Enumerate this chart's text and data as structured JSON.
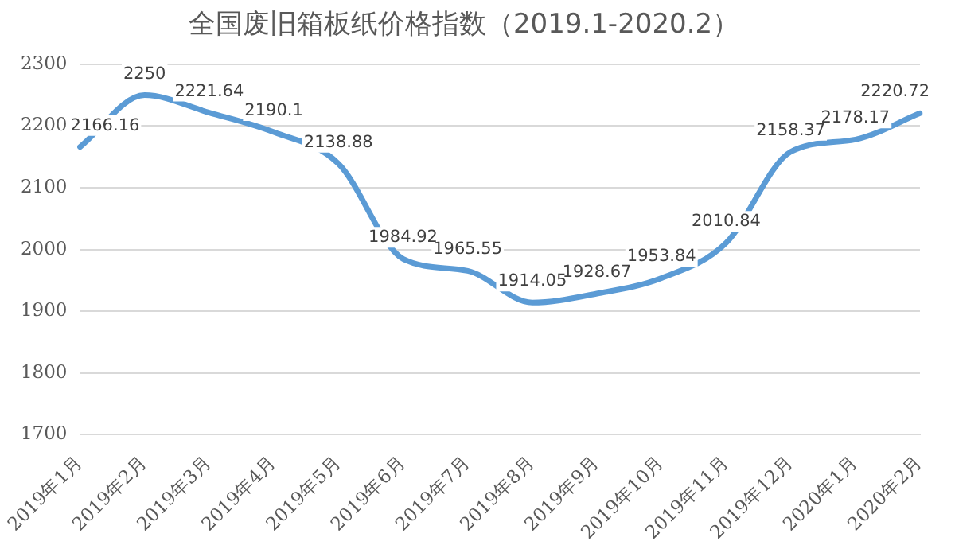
{
  "chart_data": {
    "type": "line",
    "title": "全国废旧箱板纸价格指数（2019.1-2020.2）",
    "categories": [
      "2019年1月",
      "2019年2月",
      "2019年3月",
      "2019年4月",
      "2019年5月",
      "2019年6月",
      "2019年7月",
      "2019年8月",
      "2019年9月",
      "2019年10月",
      "2019年11月",
      "2019年12月",
      "2020年1月",
      "2020年2月"
    ],
    "series": [
      {
        "color": "#5b9bd5",
        "values": [
          2166.16,
          2250,
          2221.64,
          2190.1,
          2138.88,
          1984.92,
          1965.55,
          1914.05,
          1928.67,
          1953.84,
          2010.84,
          2158.37,
          2178.17,
          2220.72
        ]
      }
    ],
    "ylim": [
      1700,
      2300
    ],
    "yticks": [
      1700,
      1800,
      1900,
      2000,
      2100,
      2200,
      2300
    ],
    "grid": "y",
    "data_labels": true,
    "marker": "none",
    "line_style": "solid",
    "legend": false
  }
}
